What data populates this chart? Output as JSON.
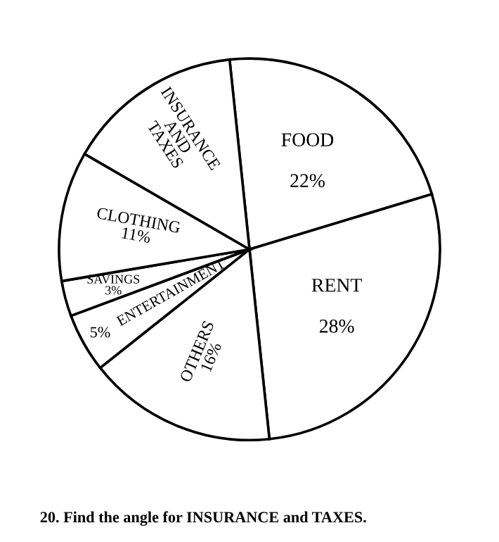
{
  "chart_data": {
    "type": "pie",
    "categories": [
      "FOOD",
      "RENT",
      "OTHERS",
      "ENTERTAINMENT",
      "SAVINGS",
      "CLOTHING",
      "INSURANCE AND TAXES"
    ],
    "values": [
      22,
      28,
      16,
      5,
      3,
      11,
      15
    ],
    "value_labels": [
      "22%",
      "28%",
      "16%",
      "5%",
      "3%",
      "11%",
      null
    ],
    "colors": [
      "#ffffff",
      "#ffffff",
      "#ffffff",
      "#ffffff",
      "#ffffff",
      "#ffffff",
      "#ffffff"
    ],
    "annotations": [
      "20. Find the angle for INSURANCE and TAXES."
    ]
  }
}
